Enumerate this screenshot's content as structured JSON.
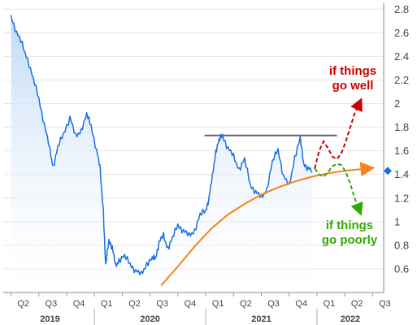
{
  "chart_data": {
    "type": "line",
    "title": "",
    "xlabel": "",
    "ylabel": "",
    "ylim": [
      0.4,
      2.85
    ],
    "y_ticks": [
      "0.6",
      "0.8",
      "1",
      "1.2",
      "1.4",
      "1.6",
      "1.8",
      "2",
      "2.2",
      "2.4",
      "2.6",
      "2.8"
    ],
    "y_tick_values": [
      0.6,
      0.8,
      1.0,
      1.2,
      1.4,
      1.6,
      1.8,
      2.0,
      2.2,
      2.4,
      2.6,
      2.8
    ],
    "x_quarter_labels": [
      "Q2",
      "Q3",
      "Q4",
      "Q1",
      "Q2",
      "Q3",
      "Q4",
      "Q1",
      "Q2",
      "Q3",
      "Q4",
      "Q1",
      "Q2",
      "Q3"
    ],
    "x_year_labels": [
      "2019",
      "2020",
      "2021",
      "2022"
    ],
    "grid": true,
    "legend": "none",
    "series": [
      {
        "x": [
          2019.25,
          2019.3,
          2019.35,
          2019.4,
          2019.45,
          2019.5,
          2019.55,
          2019.6,
          2019.63,
          2019.67,
          2019.72,
          2019.78,
          2019.83,
          2019.88,
          2019.93,
          2019.97,
          2020.02,
          2020.05,
          2020.08,
          2020.1,
          2020.13,
          2020.16,
          2020.19,
          2020.22,
          2020.27,
          2020.32,
          2020.37,
          2020.42,
          2020.47,
          2020.52,
          2020.55,
          2020.58,
          2020.62,
          2020.66,
          2020.7,
          2020.75,
          2020.8,
          2020.85,
          2020.9,
          2020.95,
          2021.0,
          2021.03,
          2021.06,
          2021.09,
          2021.12,
          2021.15,
          2021.2,
          2021.25,
          2021.3,
          2021.35,
          2021.4,
          2021.45,
          2021.5,
          2021.55,
          2021.6,
          2021.65,
          2021.7,
          2021.75,
          2021.8,
          2021.85,
          2021.88,
          2021.92,
          2021.96
        ],
        "values": [
          2.75,
          2.6,
          2.5,
          2.38,
          2.2,
          2.05,
          1.82,
          1.6,
          1.47,
          1.62,
          1.75,
          1.88,
          1.72,
          1.78,
          1.9,
          1.82,
          1.6,
          1.45,
          1.1,
          0.62,
          0.85,
          0.78,
          0.62,
          0.68,
          0.7,
          0.65,
          0.58,
          0.55,
          0.65,
          0.68,
          0.7,
          0.82,
          0.88,
          0.78,
          0.85,
          0.98,
          0.92,
          0.88,
          0.93,
          1.05,
          1.1,
          1.2,
          1.38,
          1.6,
          1.68,
          1.74,
          1.62,
          1.55,
          1.45,
          1.52,
          1.32,
          1.25,
          1.2,
          1.28,
          1.5,
          1.62,
          1.38,
          1.3,
          1.55,
          1.7,
          1.5,
          1.45,
          1.42
        ]
      }
    ],
    "current_value": 1.43,
    "resistance_level": 1.73,
    "support_curve": {
      "x": [
        2020.6,
        2020.75,
        2020.9,
        2021.05,
        2021.2,
        2021.35,
        2021.5,
        2021.65,
        2021.8,
        2021.95,
        2022.1,
        2022.25,
        2022.45
      ],
      "values": [
        0.46,
        0.62,
        0.79,
        0.94,
        1.06,
        1.15,
        1.23,
        1.29,
        1.34,
        1.38,
        1.41,
        1.43,
        1.45
      ]
    },
    "scenario_up": {
      "x": [
        2021.98,
        2022.02,
        2022.06,
        2022.1,
        2022.14,
        2022.18,
        2022.22,
        2022.26,
        2022.3,
        2022.34,
        2022.38
      ],
      "values": [
        1.45,
        1.6,
        1.68,
        1.62,
        1.55,
        1.53,
        1.58,
        1.68,
        1.8,
        1.92,
        2.0
      ]
    },
    "scenario_down": {
      "x": [
        2021.98,
        2022.02,
        2022.06,
        2022.1,
        2022.14,
        2022.18,
        2022.22,
        2022.26,
        2022.3,
        2022.34,
        2022.38
      ],
      "values": [
        1.45,
        1.4,
        1.38,
        1.42,
        1.47,
        1.49,
        1.48,
        1.42,
        1.32,
        1.2,
        1.1
      ]
    },
    "annotations": [
      {
        "text_lines": [
          "if things",
          "go well"
        ],
        "color": "#cc0000"
      },
      {
        "text_lines": [
          "if things",
          "go poorly"
        ],
        "color": "#33aa00"
      }
    ],
    "colors": {
      "line": "#1a6fe0",
      "fill_top": "#bcd7f5",
      "resistance": "#666666",
      "support": "#f4841e",
      "up": "#cc0000",
      "down": "#33aa00",
      "marker": "#1a6fe0"
    }
  }
}
